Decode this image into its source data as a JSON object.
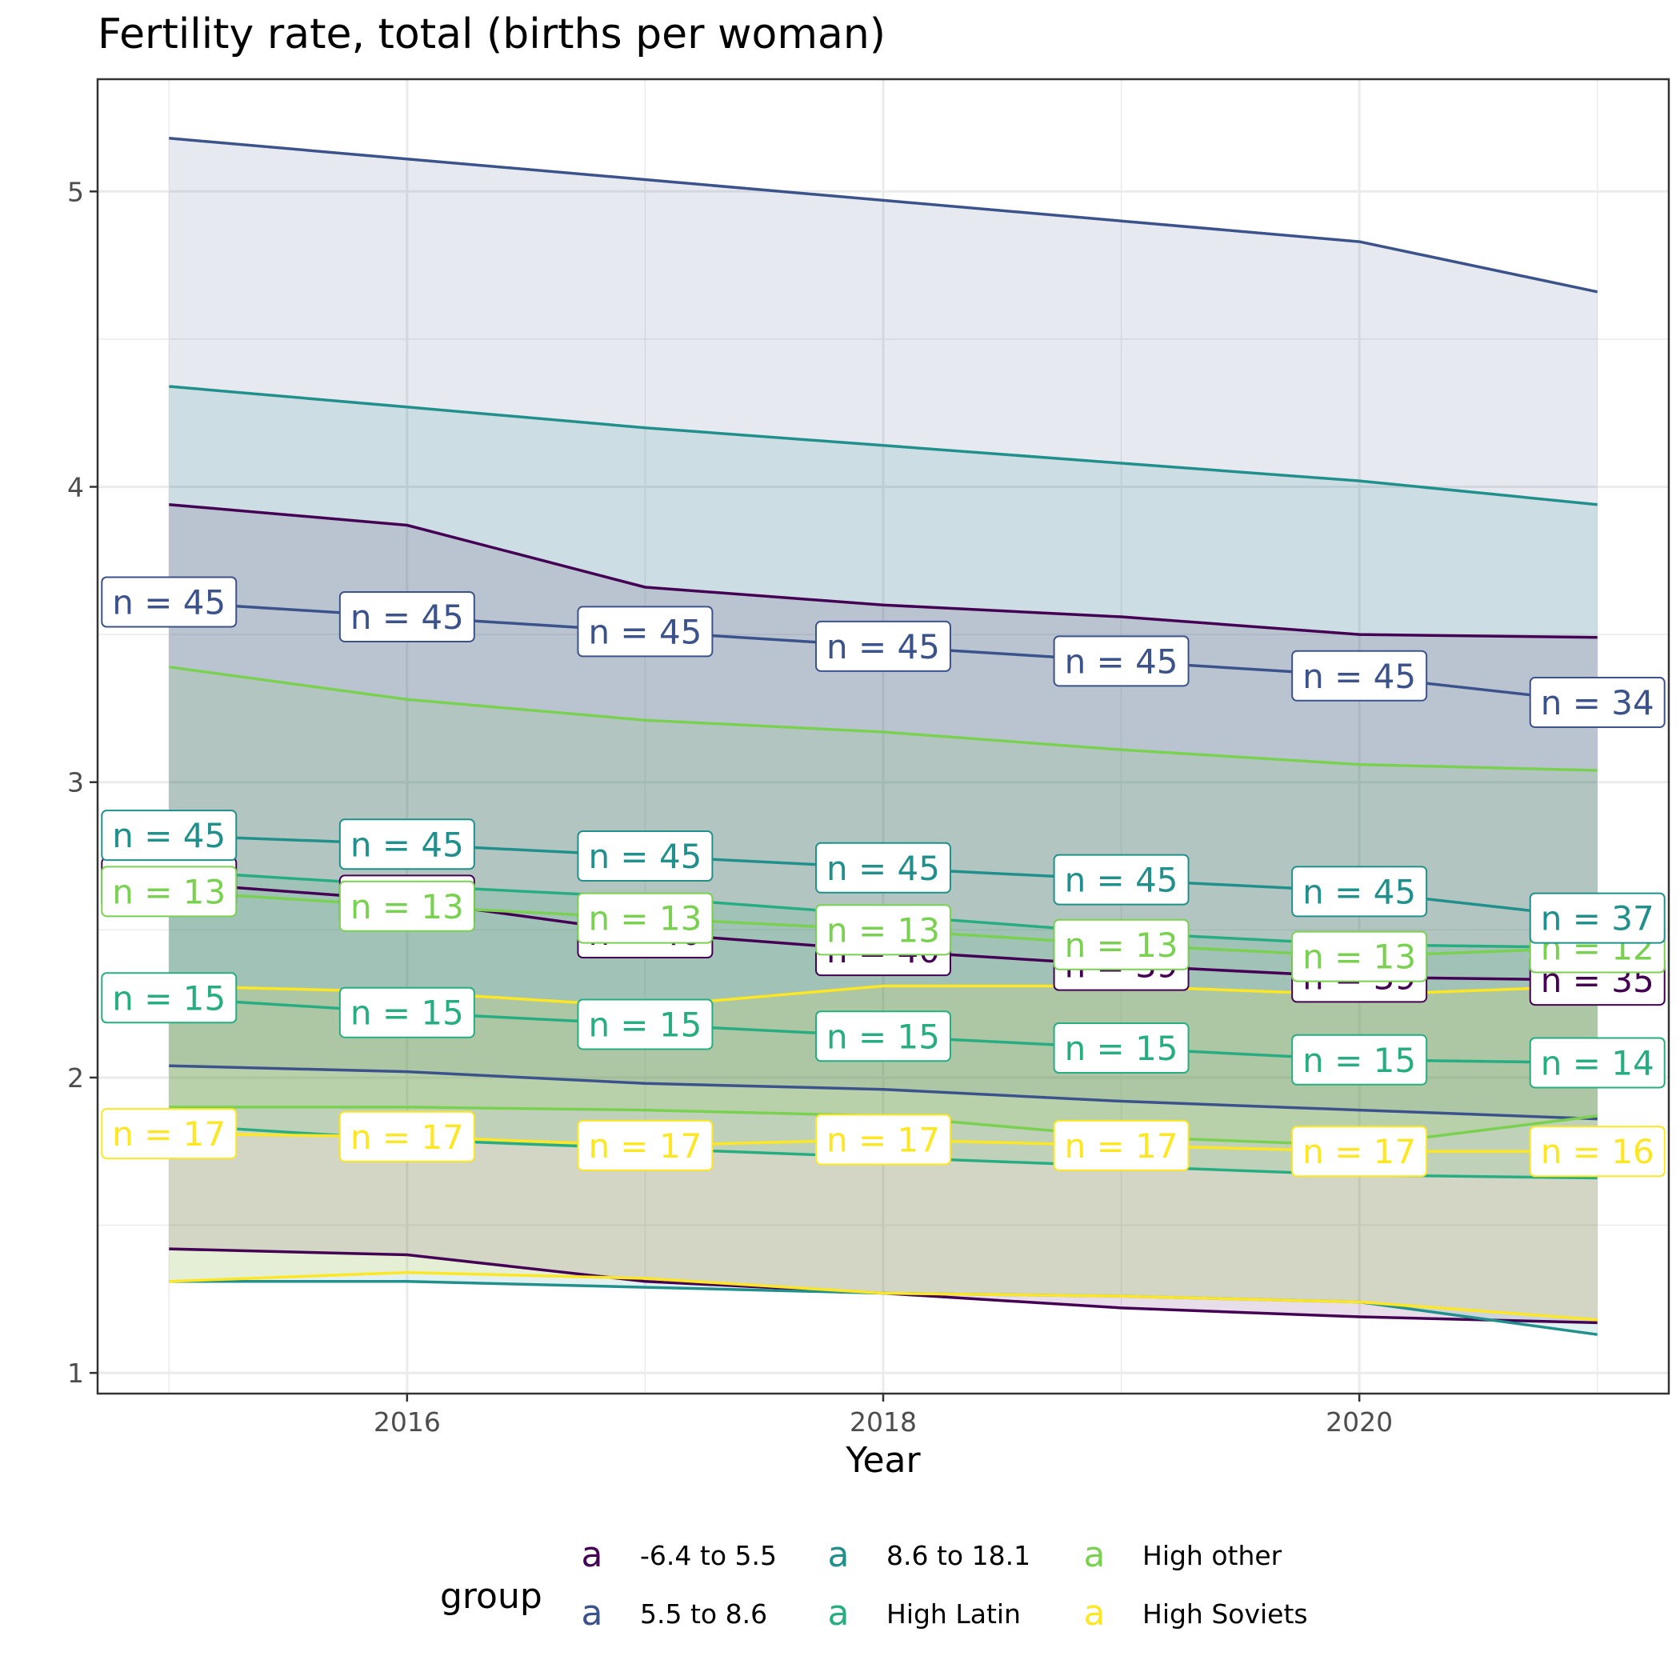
{
  "chart_data": {
    "type": "area",
    "title": "Fertility rate, total (births per woman)",
    "xlabel": "Year",
    "ylabel": "",
    "x": [
      2015,
      2016,
      2017,
      2018,
      2019,
      2020,
      2021
    ],
    "xlim": [
      2014.7,
      2021.3
    ],
    "ylim": [
      0.93,
      5.38
    ],
    "xticks": [
      2016,
      2018,
      2020
    ],
    "yticks": [
      1,
      2,
      3,
      4,
      5
    ],
    "grid": true,
    "legend": {
      "title": "group",
      "position": "bottom",
      "key_glyph": "a"
    },
    "series": [
      {
        "name": "-6.4 to 5.5",
        "color": "#440154",
        "upper": [
          3.94,
          3.87,
          3.66,
          3.6,
          3.56,
          3.5,
          3.49
        ],
        "median": [
          2.66,
          2.6,
          2.49,
          2.43,
          2.38,
          2.34,
          2.33
        ],
        "lower": [
          1.42,
          1.4,
          1.31,
          1.27,
          1.22,
          1.19,
          1.17
        ],
        "labels": [
          "n = 40",
          "n = 40",
          "n = 40",
          "n = 40",
          "n = 39",
          "n = 39",
          "n = 35"
        ]
      },
      {
        "name": "5.5 to 8.6",
        "color": "#3B528B",
        "upper": [
          5.18,
          5.11,
          5.04,
          4.97,
          4.9,
          4.83,
          4.66
        ],
        "median": [
          3.61,
          3.56,
          3.51,
          3.46,
          3.41,
          3.36,
          3.27
        ],
        "lower": [
          2.04,
          2.02,
          1.98,
          1.96,
          1.92,
          1.89,
          1.86
        ],
        "labels": [
          "n = 45",
          "n = 45",
          "n = 45",
          "n = 45",
          "n = 45",
          "n = 45",
          "n = 34"
        ]
      },
      {
        "name": "8.6 to 18.1",
        "color": "#21908C",
        "upper": [
          4.34,
          4.27,
          4.2,
          4.14,
          4.08,
          4.02,
          3.94
        ],
        "median": [
          2.82,
          2.79,
          2.75,
          2.71,
          2.67,
          2.63,
          2.54
        ],
        "lower": [
          1.31,
          1.31,
          1.29,
          1.27,
          1.26,
          1.24,
          1.13
        ],
        "labels": [
          "n = 45",
          "n = 45",
          "n = 45",
          "n = 45",
          "n = 45",
          "n = 45",
          "n = 37"
        ]
      },
      {
        "name": "High Latin",
        "color": "#27AD81",
        "upper": [
          2.7,
          2.65,
          2.61,
          2.55,
          2.49,
          2.45,
          2.44
        ],
        "median": [
          2.27,
          2.22,
          2.18,
          2.14,
          2.1,
          2.06,
          2.05
        ],
        "lower": [
          1.84,
          1.79,
          1.76,
          1.73,
          1.7,
          1.67,
          1.66
        ],
        "labels": [
          "n = 15",
          "n = 15",
          "n = 15",
          "n = 15",
          "n = 15",
          "n = 15",
          "n = 14"
        ]
      },
      {
        "name": "High other",
        "color": "#7AD151",
        "upper": [
          3.39,
          3.28,
          3.21,
          3.17,
          3.11,
          3.06,
          3.04
        ],
        "median": [
          2.63,
          2.58,
          2.54,
          2.5,
          2.45,
          2.41,
          2.44
        ],
        "lower": [
          1.9,
          1.9,
          1.89,
          1.87,
          1.8,
          1.77,
          1.87
        ],
        "labels": [
          "n = 13",
          "n = 13",
          "n = 13",
          "n = 13",
          "n = 13",
          "n = 13",
          "n = 12"
        ]
      },
      {
        "name": "High Soviets",
        "color": "#FDE725",
        "upper": [
          2.31,
          2.29,
          2.24,
          2.31,
          2.31,
          2.28,
          2.31
        ],
        "median": [
          1.81,
          1.8,
          1.77,
          1.79,
          1.77,
          1.75,
          1.75
        ],
        "lower": [
          1.31,
          1.34,
          1.32,
          1.27,
          1.26,
          1.24,
          1.18
        ],
        "labels": [
          "n = 17",
          "n = 17",
          "n = 17",
          "n = 17",
          "n = 17",
          "n = 17",
          "n = 16"
        ]
      }
    ]
  }
}
